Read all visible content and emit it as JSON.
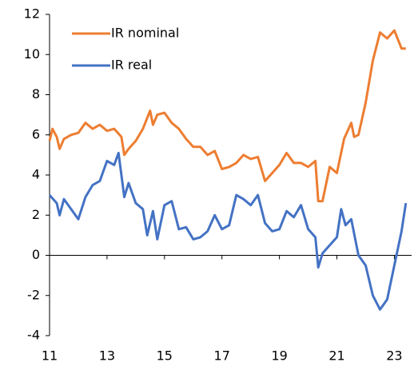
{
  "chart_data": {
    "type": "line",
    "series": [
      {
        "name": "IR nominal",
        "color": "#ed7d31",
        "x": [
          11.0,
          11.1,
          11.25,
          11.35,
          11.5,
          11.75,
          12.0,
          12.25,
          12.5,
          12.75,
          13.0,
          13.25,
          13.5,
          13.6,
          13.75,
          14.0,
          14.25,
          14.5,
          14.6,
          14.75,
          15.0,
          15.25,
          15.5,
          15.75,
          16.0,
          16.25,
          16.5,
          16.75,
          17.0,
          17.25,
          17.5,
          17.75,
          18.0,
          18.25,
          18.5,
          18.75,
          19.0,
          19.25,
          19.5,
          19.75,
          20.0,
          20.25,
          20.35,
          20.5,
          20.75,
          21.0,
          21.25,
          21.5,
          21.6,
          21.75,
          22.0,
          22.25,
          22.5,
          22.75,
          23.0,
          23.25,
          23.4
        ],
        "values": [
          5.7,
          6.3,
          5.9,
          5.3,
          5.8,
          6.0,
          6.1,
          6.6,
          6.3,
          6.5,
          6.2,
          6.3,
          5.9,
          5.0,
          5.3,
          5.7,
          6.3,
          7.2,
          6.5,
          7.0,
          7.1,
          6.6,
          6.3,
          5.8,
          5.4,
          5.4,
          5.0,
          5.2,
          4.3,
          4.4,
          4.6,
          5.0,
          4.8,
          4.9,
          3.7,
          4.1,
          4.5,
          5.1,
          4.6,
          4.6,
          4.4,
          4.7,
          2.7,
          2.7,
          4.4,
          4.1,
          5.8,
          6.6,
          5.9,
          6.0,
          7.6,
          9.7,
          11.1,
          10.8,
          11.2,
          10.3,
          10.3
        ]
      },
      {
        "name": "IR real",
        "color": "#4472c4",
        "x": [
          11.0,
          11.25,
          11.35,
          11.5,
          11.75,
          12.0,
          12.25,
          12.5,
          12.75,
          13.0,
          13.25,
          13.4,
          13.6,
          13.75,
          14.0,
          14.25,
          14.4,
          14.6,
          14.75,
          15.0,
          15.25,
          15.5,
          15.75,
          16.0,
          16.25,
          16.5,
          16.75,
          17.0,
          17.25,
          17.5,
          17.75,
          18.0,
          18.25,
          18.5,
          18.75,
          19.0,
          19.25,
          19.5,
          19.75,
          20.0,
          20.25,
          20.35,
          20.5,
          20.75,
          21.0,
          21.15,
          21.3,
          21.5,
          21.75,
          22.0,
          22.25,
          22.5,
          22.75,
          23.0,
          23.25,
          23.4
        ],
        "values": [
          3.0,
          2.6,
          2.0,
          2.8,
          2.3,
          1.8,
          2.9,
          3.5,
          3.7,
          4.7,
          4.5,
          5.1,
          2.9,
          3.6,
          2.6,
          2.3,
          1.0,
          2.2,
          0.8,
          2.5,
          2.7,
          1.3,
          1.4,
          0.8,
          0.9,
          1.2,
          2.0,
          1.3,
          1.5,
          3.0,
          2.8,
          2.5,
          3.0,
          1.6,
          1.2,
          1.3,
          2.2,
          1.9,
          2.5,
          1.3,
          0.9,
          -0.6,
          0.1,
          0.5,
          0.9,
          2.3,
          1.5,
          1.8,
          0.0,
          -0.5,
          -2.0,
          -2.7,
          -2.2,
          -0.5,
          1.2,
          2.6
        ]
      }
    ],
    "xlim": [
      11,
      23.6
    ],
    "xticks": [
      11,
      13,
      15,
      17,
      19,
      21,
      23
    ],
    "ylim": [
      -4,
      12
    ],
    "yticks": [
      -4,
      -2,
      0,
      2,
      4,
      6,
      8,
      10,
      12
    ],
    "legend": "upper left"
  }
}
